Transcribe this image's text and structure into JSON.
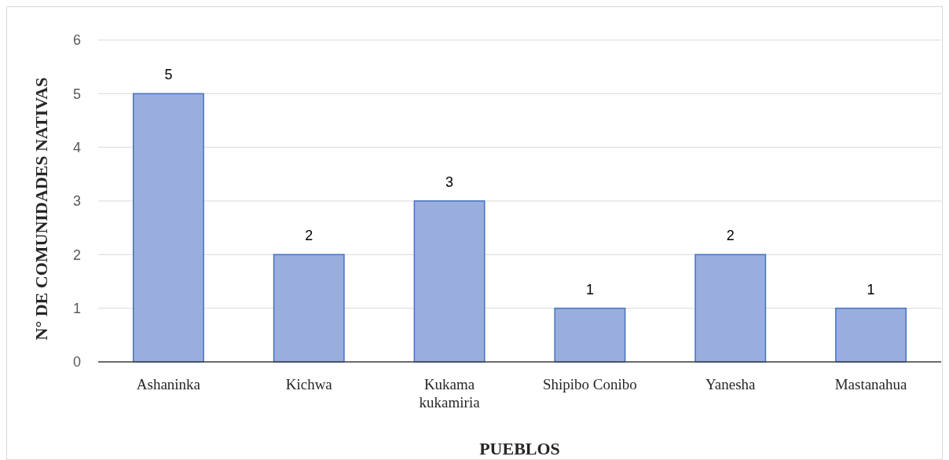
{
  "chart_data": {
    "type": "bar",
    "xlabel": "PUEBLOS",
    "ylabel": "N° DE COMUNIDADES NATIVAS",
    "categories": [
      "Ashaninka",
      "Kichwa",
      "Kukama\nkukamiria",
      "Shipibo Conibo",
      "Yanesha",
      "Mastanahua"
    ],
    "values": [
      5,
      2,
      3,
      1,
      2,
      1
    ],
    "color": "#9aaedd",
    "ylim": [
      0,
      6
    ],
    "yticks": [
      0,
      1,
      2,
      3,
      4,
      5,
      6
    ],
    "grid": "y",
    "data_labels": true
  }
}
